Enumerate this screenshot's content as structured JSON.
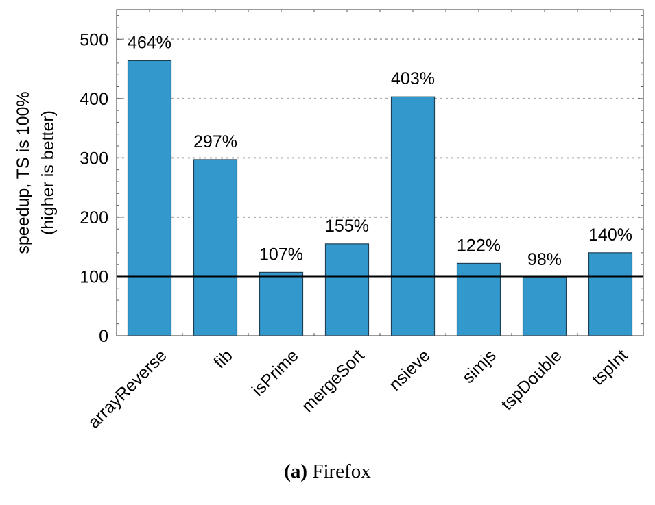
{
  "chart_data": {
    "type": "bar",
    "categories": [
      "arrayReverse",
      "fib",
      "isPrime",
      "mergeSort",
      "nsieve",
      "simjs",
      "tspDouble",
      "tspInt"
    ],
    "values": [
      464,
      297,
      107,
      155,
      403,
      122,
      98,
      140
    ],
    "data_labels": [
      "464%",
      "297%",
      "107%",
      "155%",
      "403%",
      "122%",
      "98%",
      "140%"
    ],
    "ylabel_line1": "speedup, TS is 100%",
    "ylabel_line2": "(higher is better)",
    "yticks": [
      0,
      100,
      200,
      300,
      400,
      500
    ],
    "ylim": [
      0,
      550
    ],
    "baseline": 100,
    "grid": "horizontal dotted",
    "bar_color": "#3399cc",
    "bar_edge_color": "#1f3f55"
  },
  "caption": {
    "label": "(a)",
    "text": "Firefox"
  }
}
